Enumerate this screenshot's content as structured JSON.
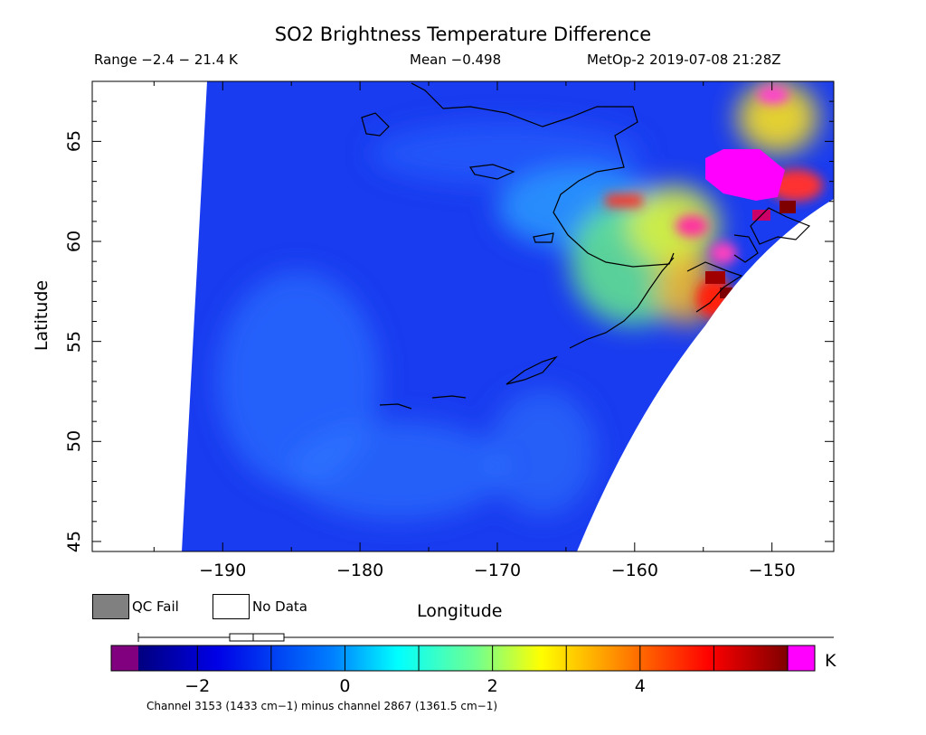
{
  "header": {
    "title": "SO2 Brightness Temperature Difference",
    "range": "Range −2.4 − 21.4 K",
    "mean": "Mean −0.498",
    "satellite_time": "MetOp-2 2019-07-08 21:28Z"
  },
  "axes": {
    "xlabel": "Longitude",
    "ylabel": "Latitude",
    "x_ticks": [
      "−190",
      "−180",
      "−170",
      "−160",
      "−150"
    ],
    "x_tick_values": [
      -190,
      -180,
      -170,
      -160,
      -150
    ],
    "y_ticks": [
      "45",
      "50",
      "55",
      "60",
      "65"
    ],
    "y_tick_values": [
      45,
      50,
      55,
      60,
      65
    ],
    "xlim": [
      -199.5,
      -145.5
    ],
    "ylim": [
      44.5,
      68
    ]
  },
  "legend": {
    "qc_fail": "QC Fail",
    "no_data": "No Data",
    "qc_fail_color": "#808080",
    "no_data_color": "#ffffff"
  },
  "colorbar": {
    "unit": "K",
    "ticks": [
      "−2",
      "0",
      "2",
      "4"
    ],
    "tick_values": [
      -2,
      0,
      2,
      4
    ],
    "range": [
      -2.8,
      6.0
    ],
    "under_color": "#800080",
    "over_color": "#ff00ff",
    "caption": "Channel 3153 (1433 cm−1) minus channel 2867 (1361.5 cm−1)"
  }
}
